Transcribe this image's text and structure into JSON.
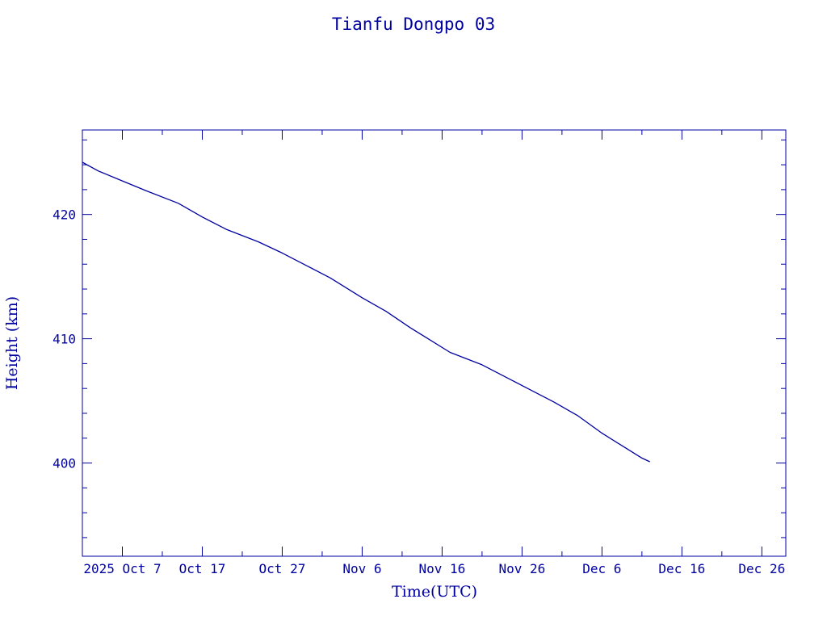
{
  "chart_data": {
    "type": "line",
    "title": "Tianfu Dongpo 03",
    "xlabel": "Time(UTC)",
    "ylabel": "Height (km)",
    "xlim": [
      "2025-10-02",
      "2025-12-29"
    ],
    "ylim": [
      392.5,
      426.8
    ],
    "grid": false,
    "x_ticks": [
      {
        "date": "2025-10-07",
        "label": "2025 Oct  7"
      },
      {
        "date": "2025-10-17",
        "label": "Oct 17"
      },
      {
        "date": "2025-10-27",
        "label": "Oct 27"
      },
      {
        "date": "2025-11-06",
        "label": "Nov  6"
      },
      {
        "date": "2025-11-16",
        "label": "Nov 16"
      },
      {
        "date": "2025-11-26",
        "label": "Nov 26"
      },
      {
        "date": "2025-12-06",
        "label": "Dec  6"
      },
      {
        "date": "2025-12-16",
        "label": "Dec 16"
      },
      {
        "date": "2025-12-26",
        "label": "Dec 26"
      }
    ],
    "y_ticks": [
      400,
      410,
      420
    ],
    "series": [
      {
        "x": [
          "2025-10-02",
          "2025-10-04",
          "2025-10-07",
          "2025-10-10",
          "2025-10-14",
          "2025-10-17",
          "2025-10-20",
          "2025-10-24",
          "2025-10-27",
          "2025-10-30",
          "2025-11-02",
          "2025-11-06",
          "2025-11-09",
          "2025-11-12",
          "2025-11-14",
          "2025-11-17",
          "2025-11-21",
          "2025-11-24",
          "2025-11-27",
          "2025-11-30",
          "2025-12-03",
          "2025-12-06",
          "2025-12-09",
          "2025-12-11",
          "2025-12-12"
        ],
        "y": [
          424.2,
          423.5,
          422.7,
          421.9,
          420.9,
          419.8,
          418.8,
          417.8,
          416.9,
          415.9,
          414.9,
          413.3,
          412.2,
          410.9,
          410.1,
          408.9,
          407.9,
          406.9,
          405.9,
          404.9,
          403.8,
          402.4,
          401.2,
          400.4,
          400.1
        ]
      }
    ]
  }
}
